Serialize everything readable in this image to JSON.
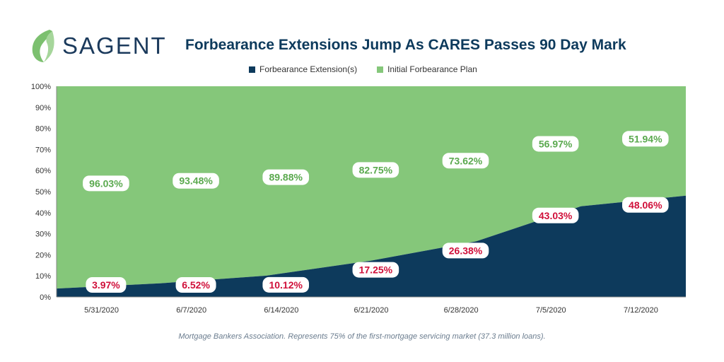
{
  "brand": {
    "name": "SAGENT",
    "logo_icon": "leaf-icon"
  },
  "colors": {
    "extension": "#0d3a5c",
    "initial": "#85c77a",
    "extension_label": "#d0103a",
    "initial_label": "#5aa94e"
  },
  "legend_items": [
    {
      "label": "Forbearance Extension(s)",
      "color": "#0d3a5c"
    },
    {
      "label": "Initial Forbearance Plan",
      "color": "#85c77a"
    }
  ],
  "footnote": "Mortgage Bankers Association. Represents 75% of the first-mortgage servicing market (37.3 million loans).",
  "chart_data": {
    "type": "area",
    "stacked": true,
    "title": "Forbearance Extensions Jump As CARES Passes 90 Day Mark",
    "x": [
      "5/31/2020",
      "6/7/2020",
      "6/14/2020",
      "6/21/2020",
      "6/28/2020",
      "7/5/2020",
      "7/12/2020"
    ],
    "series": [
      {
        "name": "Forbearance Extension(s)",
        "values": [
          3.97,
          6.52,
          10.12,
          17.25,
          26.38,
          43.03,
          48.06
        ],
        "labels": [
          "3.97%",
          "6.52%",
          "10.12%",
          "17.25%",
          "26.38%",
          "43.03%",
          "48.06%"
        ]
      },
      {
        "name": "Initial Forbearance Plan",
        "values": [
          96.03,
          93.48,
          89.88,
          82.75,
          73.62,
          56.97,
          51.94
        ],
        "labels": [
          "96.03%",
          "93.48%",
          "89.88%",
          "82.75%",
          "73.62%",
          "56.97%",
          "51.94%"
        ]
      }
    ],
    "ylim": [
      0,
      100
    ],
    "yticks": [
      "0%",
      "10%",
      "20%",
      "30%",
      "40%",
      "50%",
      "60%",
      "70%",
      "80%",
      "90%",
      "100%"
    ],
    "legend_position": "top",
    "grid": false
  }
}
